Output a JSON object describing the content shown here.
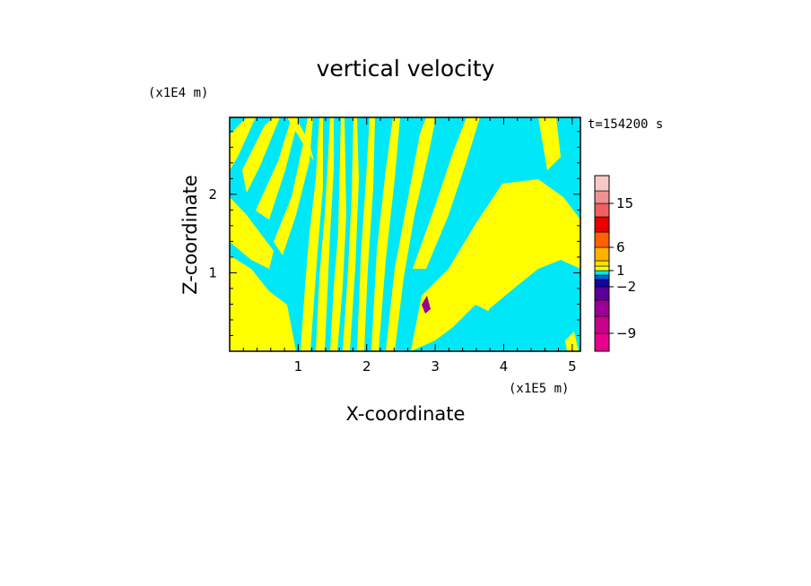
{
  "chart_data": {
    "type": "heatmap",
    "title": "vertical velocity",
    "xlabel": "X-coordinate",
    "ylabel": "Z-coordinate",
    "x_scale_label": "(x1E5 m)",
    "y_scale_label": "(x1E4 m)",
    "time_label": "t=154200 s",
    "xlim": [
      0,
      5.12
    ],
    "ylim": [
      0,
      2.98
    ],
    "x_ticks": [
      1,
      2,
      3,
      4,
      5
    ],
    "y_ticks": [
      1,
      2
    ],
    "x_tick_labels": [
      "1",
      "2",
      "3",
      "4",
      "5"
    ],
    "y_tick_labels": [
      "1",
      "2"
    ],
    "colorbar": {
      "levels": [
        -12,
        -9,
        -6,
        -4,
        -2,
        -1,
        0,
        1,
        2,
        4,
        6,
        9,
        12,
        15,
        18,
        24
      ],
      "colors": [
        "#e8008c",
        "#c8008c",
        "#9a0096",
        "#5a0098",
        "#1a00a8",
        "#0060d8",
        "#00e8f8",
        "#ffff00",
        "#ffe000",
        "#ffb000",
        "#ff6000",
        "#e80000",
        "#f06060",
        "#f09090",
        "#f8c8c8",
        "#fff0f0"
      ],
      "labeled_values": [
        "15",
        "6",
        "1",
        "−2",
        "−9"
      ]
    },
    "dominant_fill": {
      "positive": "#ffff00",
      "negative": "#00e8f8"
    }
  }
}
